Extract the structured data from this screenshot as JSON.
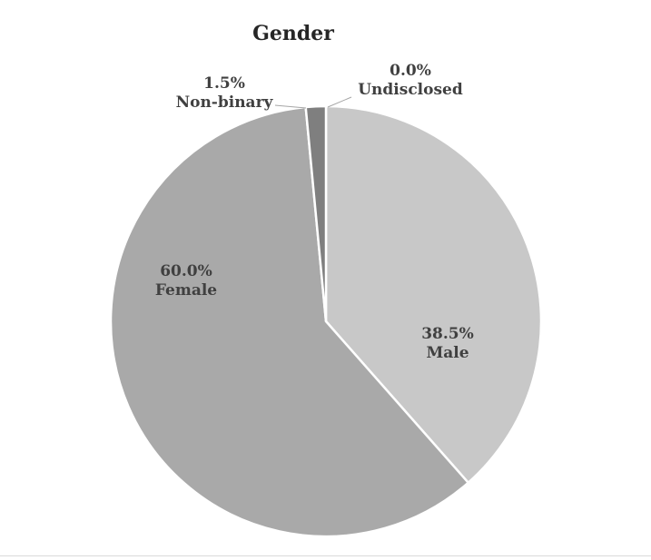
{
  "chart_data": {
    "type": "pie",
    "title": "Gender",
    "slices": [
      {
        "label": "Male",
        "value": 38.5,
        "display": "38.5%",
        "color": "#c8c8c8"
      },
      {
        "label": "Female",
        "value": 60.0,
        "display": "60.0%",
        "color": "#a9a9a9"
      },
      {
        "label": "Non-binary",
        "value": 1.5,
        "display": "1.5%",
        "color": "#7f7f7f"
      },
      {
        "label": "Undisclosed",
        "value": 0.0,
        "display": "0.0%",
        "color": "#5a5a5a"
      }
    ],
    "legend": "none",
    "data_labels": "category and percentage"
  }
}
